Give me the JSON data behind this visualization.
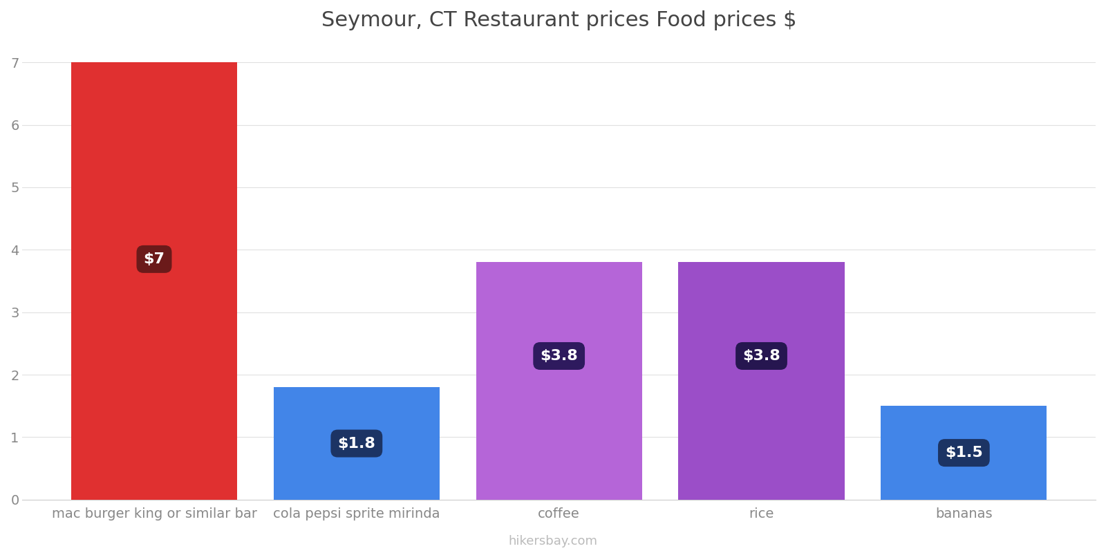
{
  "title": "Seymour, CT Restaurant prices Food prices $",
  "categories": [
    "mac burger king or similar bar",
    "cola pepsi sprite mirinda",
    "coffee",
    "rice",
    "bananas"
  ],
  "values": [
    7.0,
    1.8,
    3.8,
    3.8,
    1.5
  ],
  "labels": [
    "$7",
    "$1.8",
    "$3.8",
    "$3.8",
    "$1.5"
  ],
  "bar_colors": [
    "#e03030",
    "#4285e8",
    "#b565d8",
    "#9b4ec8",
    "#4285e8"
  ],
  "label_bg_colors": [
    "#6b1a1a",
    "#1c3464",
    "#2e1a5e",
    "#261650",
    "#1c3464"
  ],
  "ylim": [
    0,
    7.3
  ],
  "yticks": [
    0,
    1,
    2,
    3,
    4,
    5,
    6,
    7
  ],
  "watermark": "hikersbay.com",
  "title_fontsize": 22,
  "tick_fontsize": 14,
  "label_fontsize": 16,
  "background_color": "#ffffff",
  "grid_color": "#e0e0e0"
}
